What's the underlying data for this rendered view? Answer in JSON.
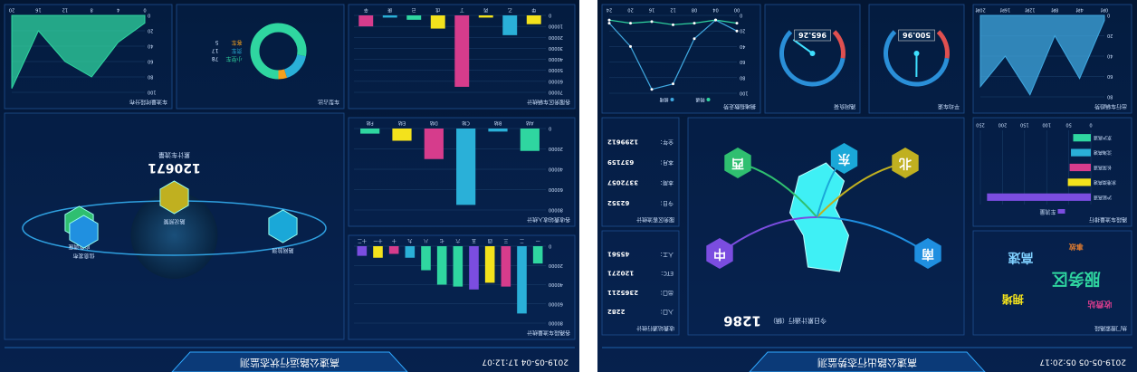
{
  "screens": [
    {
      "title": "高速公路出行态势监测",
      "time": "2019-05-05 05:20:17",
      "panels": [
        {
          "type": "wordcloud",
          "title": "热门搜索路段",
          "words": [
            "服务区",
            "拥堵",
            "收费站",
            "高速",
            "事故"
          ],
          "colors": [
            "#2fd6a0",
            "#f3e21c",
            "#d63c8c",
            "#7fd0ff",
            "#e07b2f"
          ]
        },
        {
          "type": "hbar",
          "title": "路段车流量排行",
          "legend": "车流量",
          "categories": [
            "沪昆高速",
            "京港澳高速",
            "长深高速",
            "沈海高速",
            "京沪高速"
          ],
          "values": [
            235,
            52,
            48,
            45,
            40
          ],
          "colors": [
            "#7b4de0",
            "#f3e21c",
            "#d63c8c",
            "#2ab0d8",
            "#2fd6a0"
          ],
          "xlim": [
            0,
            250
          ],
          "xticks": [
            0,
            50,
            100,
            150,
            200,
            250
          ]
        },
        {
          "type": "area",
          "title": "出行车辆趋势",
          "categories": [
            "0时",
            "4时",
            "8时",
            "12时",
            "16时",
            "20时"
          ],
          "values": [
            5,
            62,
            20,
            78,
            40,
            70
          ],
          "ylim": [
            0,
            80
          ],
          "yticks": [
            0,
            20,
            40,
            60,
            80
          ],
          "color": "#3fa8e0"
        },
        {
          "type": "gauge",
          "title": "平均车速",
          "value": 500.96,
          "lim": [
            0,
            1000
          ]
        },
        {
          "type": "gauge",
          "title": "路网负荷",
          "value": 965.26,
          "lim": [
            0,
            1000
          ]
        },
        {
          "type": "line",
          "title": "拥堵指数走势",
          "categories": [
            "00",
            "04",
            "08",
            "12",
            "16",
            "20",
            "24"
          ],
          "ylim": [
            0,
            100
          ],
          "yticks": [
            0,
            20,
            40,
            60,
            80,
            100
          ],
          "series": [
            {
              "name": "畅通",
              "color": "#2fd6a0",
              "values": [
                10,
                6,
                10,
                12,
                8,
                10,
                6
              ]
            },
            {
              "name": "拥堵",
              "color": "#3fa8e0",
              "values": [
                20,
                6,
                30,
                88,
                95,
                40,
                10
              ]
            }
          ]
        },
        {
          "type": "map",
          "hexes": [
            {
              "label": "南",
              "color": "#1f8fe0"
            },
            {
              "label": "北",
              "color": "#c0b020"
            },
            {
              "label": "东",
              "color": "#1aa8d8"
            },
            {
              "label": "西",
              "color": "#2fbf70"
            },
            {
              "label": "中",
              "color": "#7b4de0"
            }
          ],
          "count": "1286",
          "count_label": "今日累计通行（辆）"
        },
        {
          "type": "stats",
          "title": "收费站通行统计",
          "rows": [
            [
              "入口：",
              "2282"
            ],
            [
              "出口：",
              "2365211"
            ],
            [
              "ETC：",
              "120271"
            ],
            [
              "人工：",
              "45561"
            ]
          ]
        },
        {
          "type": "stats",
          "title": "服务区客流统计",
          "rows": [
            [
              "今日：",
              "62352"
            ],
            [
              "本周：",
              "3372057"
            ],
            [
              "本月：",
              "637159"
            ],
            [
              "全年：",
              "1299612"
            ]
          ]
        }
      ]
    },
    {
      "title": "高速公路运行状态监测",
      "time": "2019-05-04 17:12:07",
      "panels": [
        {
          "type": "bar",
          "title": "各路段车流量统计",
          "categories": [
            "一",
            "二",
            "三",
            "四",
            "五",
            "六",
            "七",
            "八",
            "九",
            "十",
            "十一",
            "十二"
          ],
          "values": [
            18000,
            70000,
            42000,
            38000,
            45000,
            42000,
            40000,
            25000,
            12000,
            8000,
            12000,
            10000
          ],
          "colors": [
            "#2fd6a0",
            "#2ab0d8",
            "#d63c8c",
            "#f3e21c",
            "#7b4de0",
            "#2fd6a0",
            "#2fd6a0",
            "#2fd6a0",
            "#2ab0d8",
            "#d63c8c",
            "#f3e21c",
            "#7b4de0"
          ],
          "ylim": [
            0,
            80000
          ],
          "yticks": [
            0,
            20000,
            40000,
            60000,
            80000
          ]
        },
        {
          "type": "bar",
          "title": "各收费站收入统计",
          "categories": [
            "A站",
            "B站",
            "C站",
            "D站",
            "E站",
            "F站"
          ],
          "values": [
            22000,
            3000,
            75000,
            30000,
            12000,
            5000
          ],
          "colors": [
            "#2fd6a0",
            "#2ab0d8",
            "#2ab0d8",
            "#d63c8c",
            "#f3e21c",
            "#2fd6a0"
          ],
          "ylim": [
            0,
            80000
          ],
          "yticks": [
            0,
            20000,
            40000,
            60000,
            80000
          ]
        },
        {
          "type": "bar",
          "title": "各服务区车辆统计",
          "categories": [
            "甲",
            "乙",
            "丙",
            "丁",
            "戊",
            "己",
            "庚",
            "辛"
          ],
          "values": [
            8000,
            18000,
            2000,
            65000,
            12000,
            4000,
            2000,
            10000
          ],
          "colors": [
            "#f3e21c",
            "#2ab0d8",
            "#f3e21c",
            "#d63c8c",
            "#f3e21c",
            "#2fd6a0",
            "#2ab0d8",
            "#d63c8c"
          ],
          "ylim": [
            0,
            70000
          ],
          "yticks": [
            0,
            10000,
            20000,
            30000,
            40000,
            50000,
            60000,
            70000
          ]
        },
        {
          "type": "globe",
          "nodes": [
            {
              "label": "路网监测",
              "color": "#1aa8d8"
            },
            {
              "label": "路况预警",
              "color": "#c0b020"
            },
            {
              "label": "应急调度",
              "color": "#2fbf70"
            },
            {
              "label": "信息发布",
              "color": "#2090e0"
            }
          ],
          "count": "120671",
          "count_label": "累计车流量"
        },
        {
          "type": "donut",
          "title": "车型占比",
          "values": [
            78,
            17,
            5
          ],
          "labels": [
            "小型车",
            "货车",
            "客车"
          ],
          "colors": [
            "#2fd6a0",
            "#2ab0d8",
            "#f3a01c"
          ]
        },
        {
          "type": "area",
          "title": "车流量时段分布",
          "categories": [
            "0",
            "4",
            "8",
            "12",
            "16",
            "20"
          ],
          "values": [
            10,
            35,
            80,
            60,
            20,
            95
          ],
          "ylim": [
            0,
            100
          ],
          "yticks": [
            0,
            20,
            40,
            60,
            80,
            100
          ],
          "color": "#2fd6a0"
        }
      ]
    }
  ]
}
